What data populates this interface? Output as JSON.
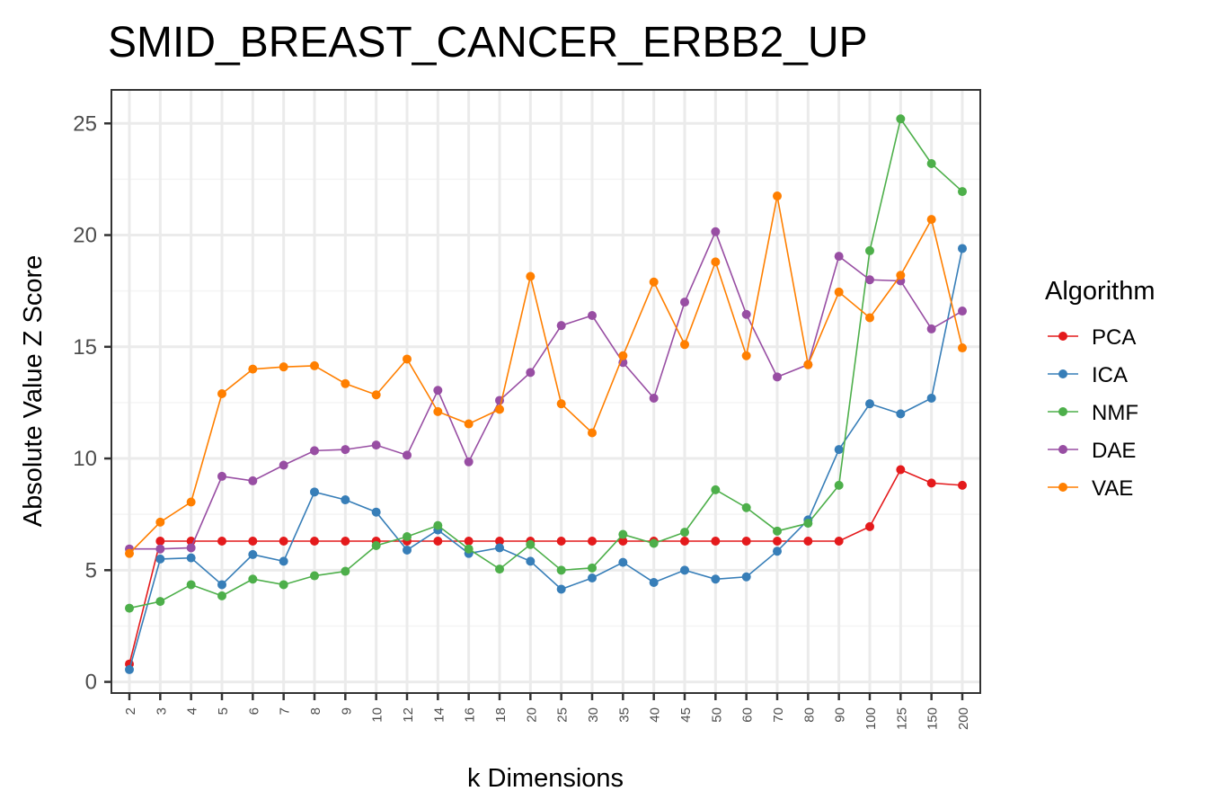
{
  "chart_data": {
    "type": "line",
    "title": "SMID_BREAST_CANCER_ERBB2_UP",
    "xlabel": "k Dimensions",
    "ylabel": "Absolute Value Z Score",
    "categories": [
      "2",
      "3",
      "4",
      "5",
      "6",
      "7",
      "8",
      "9",
      "10",
      "12",
      "14",
      "16",
      "18",
      "20",
      "25",
      "30",
      "35",
      "40",
      "45",
      "50",
      "60",
      "70",
      "80",
      "90",
      "100",
      "125",
      "150",
      "200"
    ],
    "ylim": [
      -0.5,
      26.5
    ],
    "yticks": [
      0,
      5,
      10,
      15,
      20,
      25
    ],
    "grid": true,
    "legend": {
      "title": "Algorithm",
      "position": "right"
    },
    "series": [
      {
        "name": "PCA",
        "color": "#e41a1c",
        "values": [
          0.8,
          6.3,
          6.3,
          6.3,
          6.3,
          6.3,
          6.3,
          6.3,
          6.3,
          6.3,
          6.3,
          6.3,
          6.3,
          6.3,
          6.3,
          6.3,
          6.3,
          6.3,
          6.3,
          6.3,
          6.3,
          6.3,
          6.3,
          6.3,
          6.95,
          9.5,
          8.9,
          8.8
        ]
      },
      {
        "name": "ICA",
        "color": "#377eb8",
        "values": [
          0.55,
          5.5,
          5.55,
          4.35,
          5.7,
          5.4,
          8.5,
          8.15,
          7.6,
          5.9,
          6.8,
          5.75,
          6.0,
          5.4,
          4.15,
          4.65,
          5.35,
          4.45,
          5.0,
          4.6,
          4.7,
          5.85,
          7.25,
          10.4,
          12.45,
          12.0,
          12.7,
          19.4
        ]
      },
      {
        "name": "NMF",
        "color": "#4daf4a",
        "values": [
          3.3,
          3.6,
          4.35,
          3.85,
          4.6,
          4.35,
          4.75,
          4.95,
          6.1,
          6.5,
          7.0,
          5.95,
          5.05,
          6.15,
          5.0,
          5.1,
          6.6,
          6.2,
          6.7,
          8.6,
          7.8,
          6.75,
          7.1,
          8.8,
          19.3,
          25.2,
          23.2,
          21.95
        ]
      },
      {
        "name": "DAE",
        "color": "#984ea3",
        "values": [
          5.95,
          5.95,
          6.0,
          9.2,
          9.0,
          9.7,
          10.35,
          10.4,
          10.6,
          10.15,
          13.05,
          9.85,
          12.6,
          13.85,
          15.95,
          16.4,
          14.3,
          12.7,
          17.0,
          20.15,
          16.45,
          13.65,
          14.2,
          19.05,
          18.0,
          17.95,
          15.8,
          16.6
        ]
      },
      {
        "name": "VAE",
        "color": "#ff7f00",
        "values": [
          5.75,
          7.15,
          8.05,
          12.9,
          14.0,
          14.1,
          14.15,
          13.35,
          12.85,
          14.45,
          12.1,
          11.55,
          12.2,
          18.15,
          12.45,
          11.15,
          14.6,
          17.9,
          15.1,
          18.8,
          14.6,
          21.75,
          14.2,
          17.45,
          16.3,
          18.2,
          20.7,
          14.95
        ]
      }
    ]
  }
}
